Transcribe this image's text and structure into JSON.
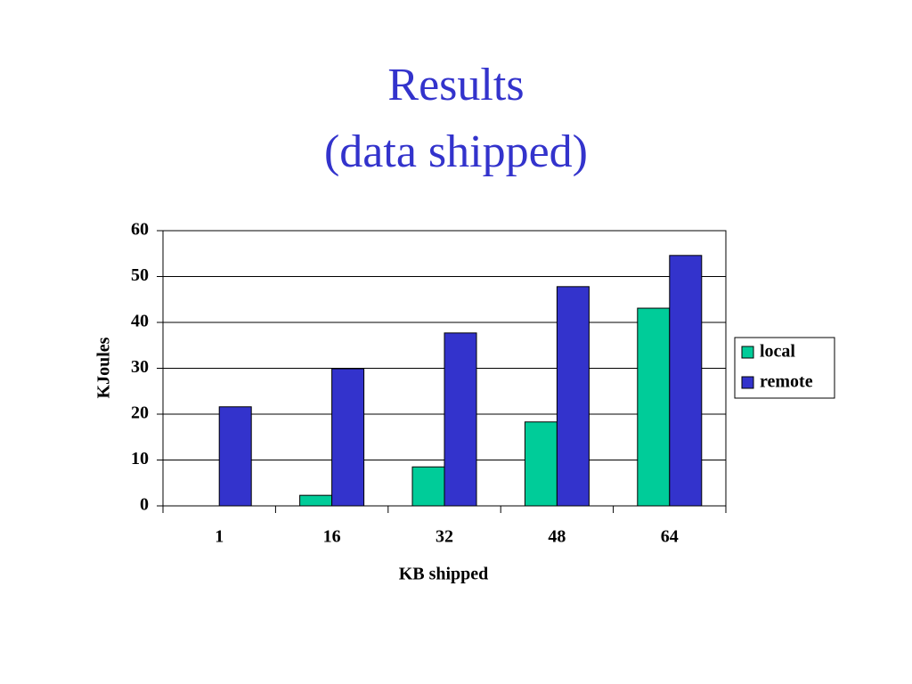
{
  "chart_data": {
    "type": "bar",
    "title": "Results",
    "subtitle": "(data shipped)",
    "x_label": "KB shipped",
    "y_label": "KJoules",
    "categories": [
      "1",
      "16",
      "32",
      "48",
      "64"
    ],
    "series": [
      {
        "name": "local",
        "color": "#00cc99",
        "values": [
          0,
          2.3,
          8.5,
          18.3,
          43.1
        ]
      },
      {
        "name": "remote",
        "color": "#3333cc",
        "values": [
          21.6,
          29.9,
          37.7,
          47.8,
          54.6
        ]
      }
    ],
    "ylim": [
      0,
      60
    ],
    "yticks": [
      0,
      10,
      20,
      30,
      40,
      50,
      60
    ],
    "grid": true,
    "legend": "right"
  }
}
